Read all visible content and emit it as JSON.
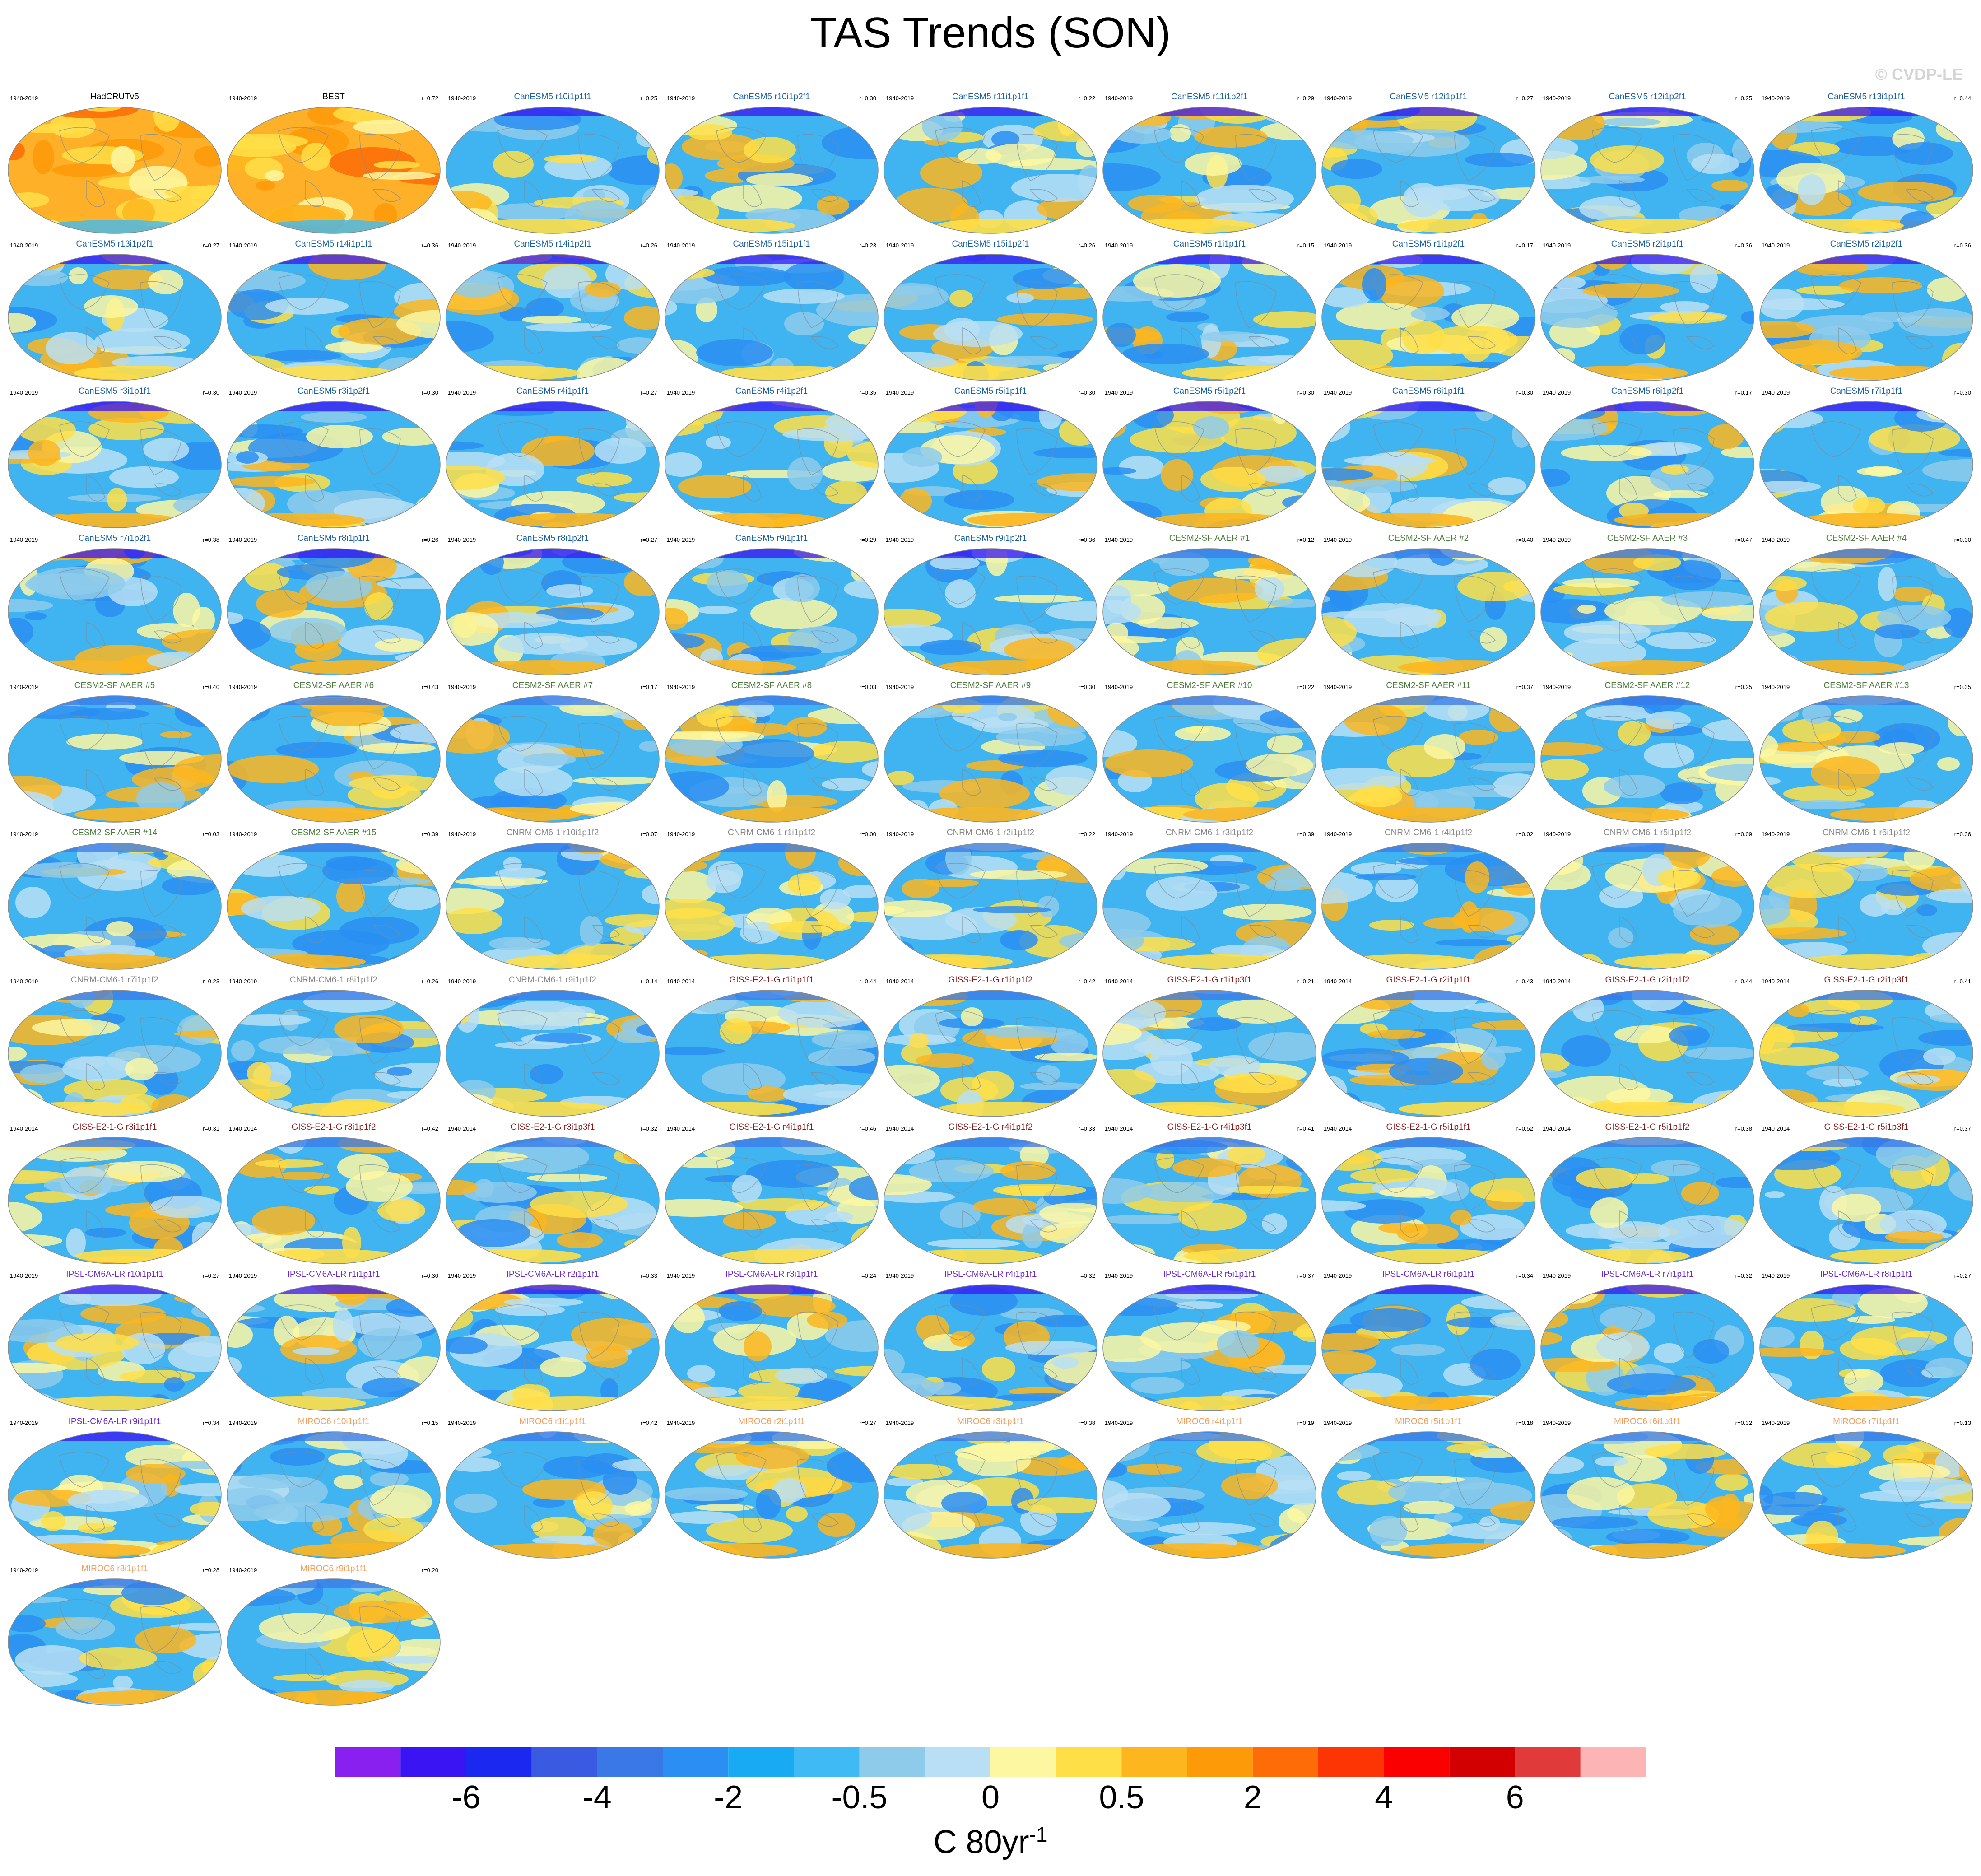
{
  "title": "TAS Trends (SON)",
  "watermark": "© CVDP-LE",
  "units": {
    "base": "C 80yr",
    "exponent": "-1"
  },
  "colorbar": {
    "labels": [
      "-6",
      "-4",
      "-2",
      "-0.5",
      "0",
      "0.5",
      "2",
      "4",
      "6"
    ],
    "colors": [
      "#8a20f0",
      "#3a14f2",
      "#1a28f0",
      "#3a5ae2",
      "#3a78e8",
      "#2a8ef2",
      "#18aaf2",
      "#40baf4",
      "#8ecbeb",
      "#b8dff4",
      "#fdf7a2",
      "#ffdf48",
      "#fdb61e",
      "#fd9a08",
      "#fd6c06",
      "#fd3404",
      "#fb0000",
      "#d20000",
      "#e03a3a",
      "#fdb4b4"
    ]
  },
  "colors": {
    "text_canesm": "#1a5fa5",
    "text_cesm": "#4a7a3a",
    "text_cnrm": "#888888",
    "text_giss": "#8b1a1a",
    "text_ipsl": "#6a2ad0",
    "text_miroc": "#f0a060",
    "text_obs": "#000000",
    "ocean": "#40b4f0"
  },
  "chart_data": {
    "type": "heatmap",
    "description_type": "small-multiple global maps",
    "panels": [
      {
        "name": "HadCRUTv5",
        "years": "1940-2019",
        "r": "",
        "group": "obs"
      },
      {
        "name": "BEST",
        "years": "1940-2019",
        "r": "r=0.72",
        "group": "obs"
      },
      {
        "name": "CanESM5 r10i1p1f1",
        "years": "1940-2019",
        "r": "r=0.25",
        "group": "canesm"
      },
      {
        "name": "CanESM5 r10i1p2f1",
        "years": "1940-2019",
        "r": "r=0.30",
        "group": "canesm"
      },
      {
        "name": "CanESM5 r11i1p1f1",
        "years": "1940-2019",
        "r": "r=0.22",
        "group": "canesm"
      },
      {
        "name": "CanESM5 r11i1p2f1",
        "years": "1940-2019",
        "r": "r=0.29",
        "group": "canesm"
      },
      {
        "name": "CanESM5 r12i1p1f1",
        "years": "1940-2019",
        "r": "r=0.27",
        "group": "canesm"
      },
      {
        "name": "CanESM5 r12i1p2f1",
        "years": "1940-2019",
        "r": "r=0.25",
        "group": "canesm"
      },
      {
        "name": "CanESM5 r13i1p1f1",
        "years": "1940-2019",
        "r": "r=0.44",
        "group": "canesm"
      },
      {
        "name": "CanESM5 r13i1p2f1",
        "years": "1940-2019",
        "r": "r=0.27",
        "group": "canesm"
      },
      {
        "name": "CanESM5 r14i1p1f1",
        "years": "1940-2019",
        "r": "r=0.36",
        "group": "canesm"
      },
      {
        "name": "CanESM5 r14i1p2f1",
        "years": "1940-2019",
        "r": "r=0.26",
        "group": "canesm"
      },
      {
        "name": "CanESM5 r15i1p1f1",
        "years": "1940-2019",
        "r": "r=0.23",
        "group": "canesm"
      },
      {
        "name": "CanESM5 r15i1p2f1",
        "years": "1940-2019",
        "r": "r=0.26",
        "group": "canesm"
      },
      {
        "name": "CanESM5 r1i1p1f1",
        "years": "1940-2019",
        "r": "r=0.15",
        "group": "canesm"
      },
      {
        "name": "CanESM5 r1i1p2f1",
        "years": "1940-2019",
        "r": "r=0.17",
        "group": "canesm"
      },
      {
        "name": "CanESM5 r2i1p1f1",
        "years": "1940-2019",
        "r": "r=0.36",
        "group": "canesm"
      },
      {
        "name": "CanESM5 r2i1p2f1",
        "years": "1940-2019",
        "r": "r=0.36",
        "group": "canesm"
      },
      {
        "name": "CanESM5 r3i1p1f1",
        "years": "1940-2019",
        "r": "r=0.30",
        "group": "canesm"
      },
      {
        "name": "CanESM5 r3i1p2f1",
        "years": "1940-2019",
        "r": "r=0.30",
        "group": "canesm"
      },
      {
        "name": "CanESM5 r4i1p1f1",
        "years": "1940-2019",
        "r": "r=0.27",
        "group": "canesm"
      },
      {
        "name": "CanESM5 r4i1p2f1",
        "years": "1940-2019",
        "r": "r=0.35",
        "group": "canesm"
      },
      {
        "name": "CanESM5 r5i1p1f1",
        "years": "1940-2019",
        "r": "r=0.30",
        "group": "canesm"
      },
      {
        "name": "CanESM5 r5i1p2f1",
        "years": "1940-2019",
        "r": "r=0.30",
        "group": "canesm"
      },
      {
        "name": "CanESM5 r6i1p1f1",
        "years": "1940-2019",
        "r": "r=0.30",
        "group": "canesm"
      },
      {
        "name": "CanESM5 r6i1p2f1",
        "years": "1940-2019",
        "r": "r=0.17",
        "group": "canesm"
      },
      {
        "name": "CanESM5 r7i1p1f1",
        "years": "1940-2019",
        "r": "r=0.30",
        "group": "canesm"
      },
      {
        "name": "CanESM5 r7i1p2f1",
        "years": "1940-2019",
        "r": "r=0.38",
        "group": "canesm"
      },
      {
        "name": "CanESM5 r8i1p1f1",
        "years": "1940-2019",
        "r": "r=0.26",
        "group": "canesm"
      },
      {
        "name": "CanESM5 r8i1p2f1",
        "years": "1940-2019",
        "r": "r=0.27",
        "group": "canesm"
      },
      {
        "name": "CanESM5 r9i1p1f1",
        "years": "1940-2019",
        "r": "r=0.29",
        "group": "canesm"
      },
      {
        "name": "CanESM5 r9i1p2f1",
        "years": "1940-2019",
        "r": "r=0.36",
        "group": "canesm"
      },
      {
        "name": "CESM2-SF AAER #1",
        "years": "1940-2019",
        "r": "r=0.12",
        "group": "cesm"
      },
      {
        "name": "CESM2-SF AAER #2",
        "years": "1940-2019",
        "r": "r=0.40",
        "group": "cesm"
      },
      {
        "name": "CESM2-SF AAER #3",
        "years": "1940-2019",
        "r": "r=0.47",
        "group": "cesm"
      },
      {
        "name": "CESM2-SF AAER #4",
        "years": "1940-2019",
        "r": "r=0.30",
        "group": "cesm"
      },
      {
        "name": "CESM2-SF AAER #5",
        "years": "1940-2019",
        "r": "r=0.40",
        "group": "cesm"
      },
      {
        "name": "CESM2-SF AAER #6",
        "years": "1940-2019",
        "r": "r=0.43",
        "group": "cesm"
      },
      {
        "name": "CESM2-SF AAER #7",
        "years": "1940-2019",
        "r": "r=0.17",
        "group": "cesm"
      },
      {
        "name": "CESM2-SF AAER #8",
        "years": "1940-2019",
        "r": "r=0.03",
        "group": "cesm"
      },
      {
        "name": "CESM2-SF AAER #9",
        "years": "1940-2019",
        "r": "r=0.30",
        "group": "cesm"
      },
      {
        "name": "CESM2-SF AAER #10",
        "years": "1940-2019",
        "r": "r=0.22",
        "group": "cesm"
      },
      {
        "name": "CESM2-SF AAER #11",
        "years": "1940-2019",
        "r": "r=0.37",
        "group": "cesm"
      },
      {
        "name": "CESM2-SF AAER #12",
        "years": "1940-2019",
        "r": "r=0.25",
        "group": "cesm"
      },
      {
        "name": "CESM2-SF AAER #13",
        "years": "1940-2019",
        "r": "r=0.35",
        "group": "cesm"
      },
      {
        "name": "CESM2-SF AAER #14",
        "years": "1940-2019",
        "r": "r=0.03",
        "group": "cesm"
      },
      {
        "name": "CESM2-SF AAER #15",
        "years": "1940-2019",
        "r": "r=0.39",
        "group": "cesm"
      },
      {
        "name": "CNRM-CM6-1 r10i1p1f2",
        "years": "1940-2019",
        "r": "r=0.07",
        "group": "cnrm"
      },
      {
        "name": "CNRM-CM6-1 r1i1p1f2",
        "years": "1940-2019",
        "r": "r=0.00",
        "group": "cnrm"
      },
      {
        "name": "CNRM-CM6-1 r2i1p1f2",
        "years": "1940-2019",
        "r": "r=0.22",
        "group": "cnrm"
      },
      {
        "name": "CNRM-CM6-1 r3i1p1f2",
        "years": "1940-2019",
        "r": "r=0.39",
        "group": "cnrm"
      },
      {
        "name": "CNRM-CM6-1 r4i1p1f2",
        "years": "1940-2019",
        "r": "r=0.02",
        "group": "cnrm"
      },
      {
        "name": "CNRM-CM6-1 r5i1p1f2",
        "years": "1940-2019",
        "r": "r=0.09",
        "group": "cnrm"
      },
      {
        "name": "CNRM-CM6-1 r6i1p1f2",
        "years": "1940-2019",
        "r": "r=0.36",
        "group": "cnrm"
      },
      {
        "name": "CNRM-CM6-1 r7i1p1f2",
        "years": "1940-2019",
        "r": "r=0.23",
        "group": "cnrm"
      },
      {
        "name": "CNRM-CM6-1 r8i1p1f2",
        "years": "1940-2019",
        "r": "r=0.26",
        "group": "cnrm"
      },
      {
        "name": "CNRM-CM6-1 r9i1p1f2",
        "years": "1940-2019",
        "r": "r=0.14",
        "group": "cnrm"
      },
      {
        "name": "GISS-E2-1-G r1i1p1f1",
        "years": "1940-2014",
        "r": "r=0.44",
        "group": "giss"
      },
      {
        "name": "GISS-E2-1-G r1i1p1f2",
        "years": "1940-2014",
        "r": "r=0.42",
        "group": "giss"
      },
      {
        "name": "GISS-E2-1-G r1i1p3f1",
        "years": "1940-2014",
        "r": "r=0.21",
        "group": "giss"
      },
      {
        "name": "GISS-E2-1-G r2i1p1f1",
        "years": "1940-2014",
        "r": "r=0.43",
        "group": "giss"
      },
      {
        "name": "GISS-E2-1-G r2i1p1f2",
        "years": "1940-2014",
        "r": "r=0.44",
        "group": "giss"
      },
      {
        "name": "GISS-E2-1-G r2i1p3f1",
        "years": "1940-2014",
        "r": "r=0.41",
        "group": "giss"
      },
      {
        "name": "GISS-E2-1-G r3i1p1f1",
        "years": "1940-2014",
        "r": "r=0.31",
        "group": "giss"
      },
      {
        "name": "GISS-E2-1-G r3i1p1f2",
        "years": "1940-2014",
        "r": "r=0.42",
        "group": "giss"
      },
      {
        "name": "GISS-E2-1-G r3i1p3f1",
        "years": "1940-2014",
        "r": "r=0.32",
        "group": "giss"
      },
      {
        "name": "GISS-E2-1-G r4i1p1f1",
        "years": "1940-2014",
        "r": "r=0.46",
        "group": "giss"
      },
      {
        "name": "GISS-E2-1-G r4i1p1f2",
        "years": "1940-2014",
        "r": "r=0.33",
        "group": "giss"
      },
      {
        "name": "GISS-E2-1-G r4i1p3f1",
        "years": "1940-2014",
        "r": "r=0.41",
        "group": "giss"
      },
      {
        "name": "GISS-E2-1-G r5i1p1f1",
        "years": "1940-2014",
        "r": "r=0.52",
        "group": "giss"
      },
      {
        "name": "GISS-E2-1-G r5i1p1f2",
        "years": "1940-2014",
        "r": "r=0.38",
        "group": "giss"
      },
      {
        "name": "GISS-E2-1-G r5i1p3f1",
        "years": "1940-2014",
        "r": "r=0.37",
        "group": "giss"
      },
      {
        "name": "IPSL-CM6A-LR r10i1p1f1",
        "years": "1940-2019",
        "r": "r=0.27",
        "group": "ipsl"
      },
      {
        "name": "IPSL-CM6A-LR r1i1p1f1",
        "years": "1940-2019",
        "r": "r=0.30",
        "group": "ipsl"
      },
      {
        "name": "IPSL-CM6A-LR r2i1p1f1",
        "years": "1940-2019",
        "r": "r=0.33",
        "group": "ipsl"
      },
      {
        "name": "IPSL-CM6A-LR r3i1p1f1",
        "years": "1940-2019",
        "r": "r=0.24",
        "group": "ipsl"
      },
      {
        "name": "IPSL-CM6A-LR r4i1p1f1",
        "years": "1940-2019",
        "r": "r=0.32",
        "group": "ipsl"
      },
      {
        "name": "IPSL-CM6A-LR r5i1p1f1",
        "years": "1940-2019",
        "r": "r=0.37",
        "group": "ipsl"
      },
      {
        "name": "IPSL-CM6A-LR r6i1p1f1",
        "years": "1940-2019",
        "r": "r=0.34",
        "group": "ipsl"
      },
      {
        "name": "IPSL-CM6A-LR r7i1p1f1",
        "years": "1940-2019",
        "r": "r=0.32",
        "group": "ipsl"
      },
      {
        "name": "IPSL-CM6A-LR r8i1p1f1",
        "years": "1940-2019",
        "r": "r=0.27",
        "group": "ipsl"
      },
      {
        "name": "IPSL-CM6A-LR r9i1p1f1",
        "years": "1940-2019",
        "r": "r=0.34",
        "group": "ipsl"
      },
      {
        "name": "MIROC6 r10i1p1f1",
        "years": "1940-2019",
        "r": "r=0.15",
        "group": "miroc"
      },
      {
        "name": "MIROC6 r1i1p1f1",
        "years": "1940-2019",
        "r": "r=0.42",
        "group": "miroc"
      },
      {
        "name": "MIROC6 r2i1p1f1",
        "years": "1940-2019",
        "r": "r=0.27",
        "group": "miroc"
      },
      {
        "name": "MIROC6 r3i1p1f1",
        "years": "1940-2019",
        "r": "r=0.38",
        "group": "miroc"
      },
      {
        "name": "MIROC6 r4i1p1f1",
        "years": "1940-2019",
        "r": "r=0.19",
        "group": "miroc"
      },
      {
        "name": "MIROC6 r5i1p1f1",
        "years": "1940-2019",
        "r": "r=0.18",
        "group": "miroc"
      },
      {
        "name": "MIROC6 r6i1p1f1",
        "years": "1940-2019",
        "r": "r=0.32",
        "group": "miroc"
      },
      {
        "name": "MIROC6 r7i1p1f1",
        "years": "1940-2019",
        "r": "r=0.13",
        "group": "miroc"
      },
      {
        "name": "MIROC6 r8i1p1f1",
        "years": "1940-2019",
        "r": "r=0.28",
        "group": "miroc"
      },
      {
        "name": "MIROC6 r9i1p1f1",
        "years": "1940-2019",
        "r": "r=0.20",
        "group": "miroc"
      }
    ]
  }
}
